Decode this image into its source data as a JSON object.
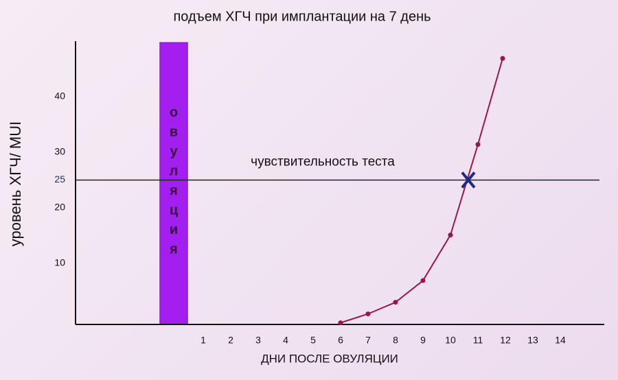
{
  "chart_data": {
    "type": "line",
    "title": "подъем ХГЧ при имплантации на 7 день",
    "y_label": "уровень ХГЧ/ MUI",
    "x_label": "ДНИ ПОСЛЕ ОВУЛЯЦИИ",
    "x": [
      6,
      7,
      8,
      9,
      10,
      11,
      11.9
    ],
    "values": [
      -0.7,
      0.9,
      3.0,
      6.9,
      15.1,
      31.4,
      46.9
    ],
    "color": "#9b1545",
    "xlim": [
      -3.65,
      15.6
    ],
    "ylim": [
      -1,
      50
    ],
    "xticks": [
      1,
      2,
      3,
      4,
      5,
      6,
      7,
      8,
      9,
      10,
      11,
      12,
      13,
      14
    ],
    "yticks": [
      10,
      20,
      25,
      30,
      40
    ],
    "threshold": {
      "value": 25,
      "label": "чувствительность теста",
      "color": "#1a2a7a"
    },
    "ovulation": {
      "x": [
        -0.58,
        0.43
      ],
      "label": "овуляция",
      "color": "#a21ff0"
    },
    "cross": {
      "x": 10.65,
      "y": 25,
      "color": "#1c2a8c"
    },
    "grid": false
  }
}
